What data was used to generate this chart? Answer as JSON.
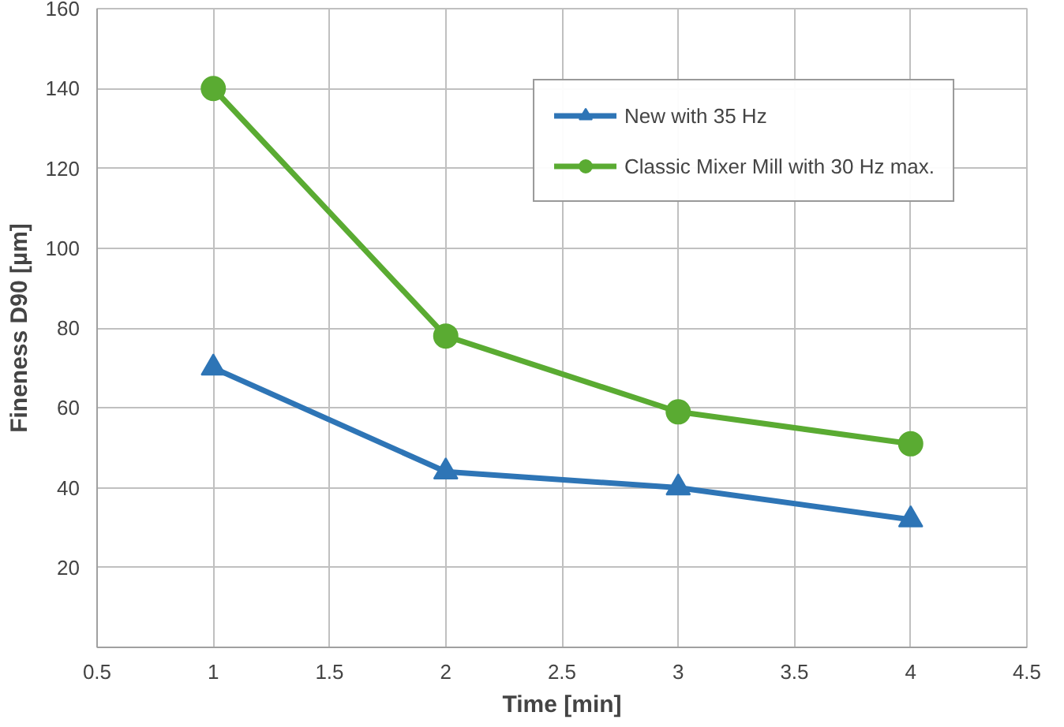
{
  "chart_data": {
    "type": "line",
    "xlabel": "Time [min]",
    "ylabel": "Fineness D90 [µm]",
    "x": [
      1,
      2,
      3,
      4
    ],
    "series": [
      {
        "name": "New with 35 Hz",
        "color": "#2e75b6",
        "values": [
          70,
          44,
          40,
          32
        ],
        "marker": "triangle"
      },
      {
        "name": "Classic Mixer Mill with 30 Hz max.",
        "color": "#5aab32",
        "values": [
          140,
          78,
          59,
          51
        ],
        "marker": "circle"
      }
    ],
    "xlim": [
      0.5,
      4.5
    ],
    "xticks": [
      0.5,
      1,
      1.5,
      2,
      2.5,
      3,
      3.5,
      4,
      4.5
    ],
    "ylim": [
      0,
      160
    ],
    "yticks": [
      {
        "value": 0,
        "label": null
      },
      20,
      40,
      60,
      80,
      100,
      120,
      140,
      160
    ],
    "grid": true,
    "legend": "top right",
    "line_style": "solid"
  }
}
